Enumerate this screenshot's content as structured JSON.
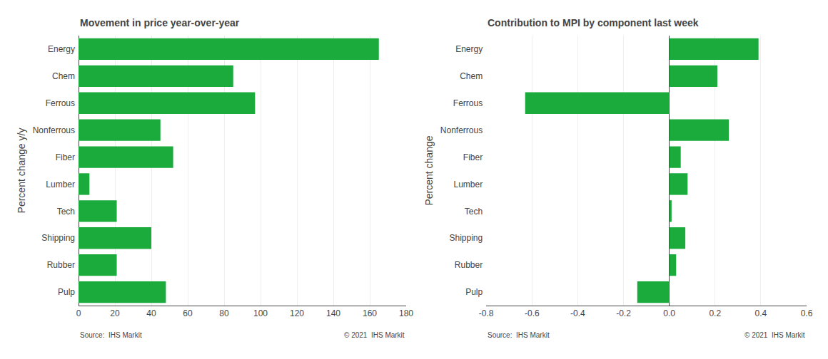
{
  "chart_data": [
    {
      "type": "bar",
      "orientation": "horizontal",
      "title": "Movement in price year-over-year",
      "ylabel": "Percent change y/y",
      "categories": [
        "Energy",
        "Chem",
        "Ferrous",
        "Nonferrous",
        "Fiber",
        "Lumber",
        "Tech",
        "Shipping",
        "Rubber",
        "Pulp"
      ],
      "values": [
        165,
        85,
        97,
        45,
        52,
        6,
        21,
        40,
        21,
        48
      ],
      "color": "#1aab3c",
      "xlim": [
        0,
        180
      ],
      "xticks": [
        0,
        20,
        40,
        60,
        80,
        100,
        120,
        140,
        160,
        180
      ],
      "grid": true,
      "annotations": [
        "Source:  IHS Markit",
        "© 2021  IHS Markit"
      ]
    },
    {
      "type": "bar",
      "orientation": "horizontal",
      "title": "Contribution to MPI by component last week",
      "ylabel": "Percent change",
      "categories": [
        "Energy",
        "Chem",
        "Ferrous",
        "Nonferrous",
        "Fiber",
        "Lumber",
        "Tech",
        "Shipping",
        "Rubber",
        "Pulp"
      ],
      "values": [
        0.39,
        0.21,
        -0.63,
        0.26,
        0.05,
        0.08,
        0.01,
        0.07,
        0.03,
        -0.14
      ],
      "color": "#1aab3c",
      "xlim": [
        -0.8,
        0.6
      ],
      "xticks": [
        -0.8,
        -0.6,
        -0.4,
        -0.2,
        {
          "value": 0.0,
          "label": "0.0"
        },
        0.2,
        0.4,
        0.6
      ],
      "grid": true,
      "annotations": [
        "Source:  IHS Markit",
        "© 2021  IHS Markit"
      ]
    }
  ]
}
